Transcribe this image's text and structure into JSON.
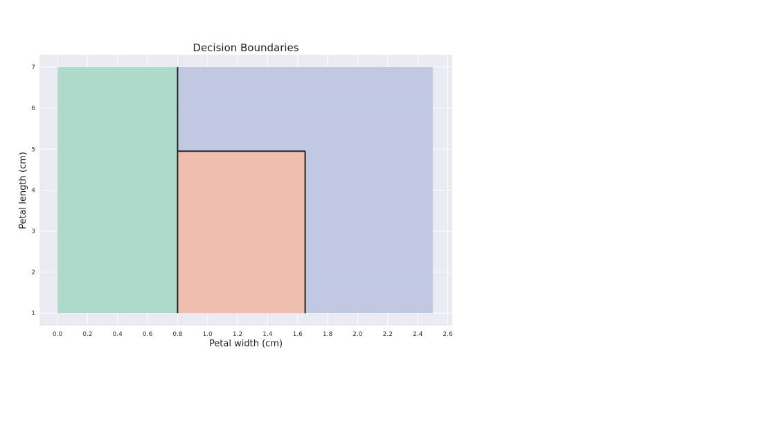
{
  "chart_data": {
    "type": "area",
    "title": "Decision Boundaries",
    "xlabel": "Petal width (cm)",
    "ylabel": "Petal length (cm)",
    "xlim": [
      -0.12,
      2.63
    ],
    "ylim": [
      0.7,
      7.3
    ],
    "x_ticks": [
      0.0,
      0.2,
      0.4,
      0.6,
      0.8,
      1.0,
      1.2,
      1.4,
      1.6,
      1.8,
      2.0,
      2.2,
      2.4,
      2.6
    ],
    "x_tick_labels": [
      "0.0",
      "0.2",
      "0.4",
      "0.6",
      "0.8",
      "1.0",
      "1.2",
      "1.4",
      "1.6",
      "1.8",
      "2.0",
      "2.2",
      "2.4",
      "2.6"
    ],
    "y_ticks": [
      1,
      2,
      3,
      4,
      5,
      6,
      7
    ],
    "y_tick_labels": [
      "1",
      "2",
      "3",
      "4",
      "5",
      "6",
      "7"
    ],
    "grid": true,
    "background_color": "#eaeaf2",
    "regions": [
      {
        "x": [
          0.0,
          0.8
        ],
        "y": [
          1.0,
          7.0
        ],
        "color": "#a8d8c9"
      },
      {
        "x": [
          0.8,
          2.5
        ],
        "y": [
          1.0,
          7.0
        ],
        "color": "#bcc5e0"
      },
      {
        "x": [
          0.8,
          1.65
        ],
        "y": [
          1.0,
          4.95
        ],
        "color": "#f3bda9"
      }
    ],
    "boundaries": [
      {
        "x": [
          0.8,
          0.8
        ],
        "y": [
          1.0,
          7.0
        ]
      },
      {
        "x": [
          0.8,
          1.65
        ],
        "y": [
          4.95,
          4.95
        ]
      },
      {
        "x": [
          1.65,
          1.65
        ],
        "y": [
          1.0,
          4.95
        ]
      }
    ],
    "boundary_color": "#222222"
  }
}
